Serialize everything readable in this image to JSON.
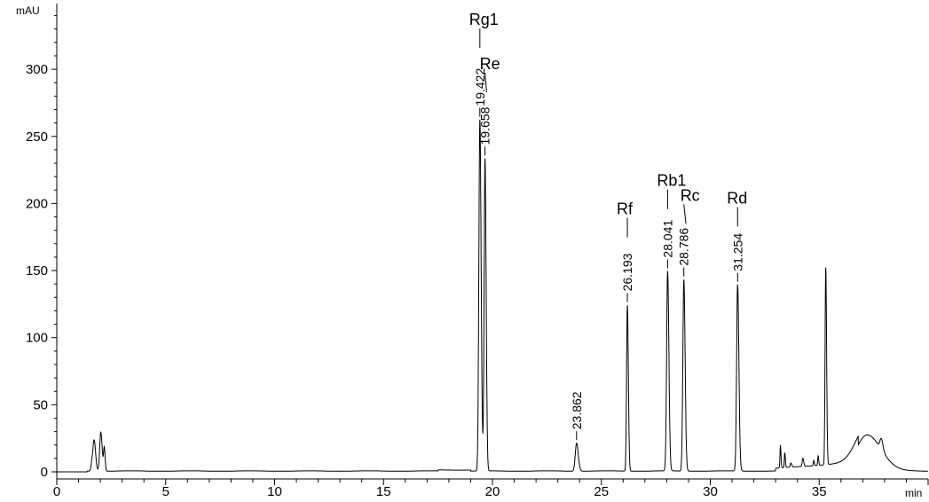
{
  "chart_data": {
    "type": "line",
    "title": "",
    "xlabel": "min",
    "ylabel": "mAU",
    "xlim": [
      0,
      40
    ],
    "ylim": [
      -5,
      348
    ],
    "x_ticks": [
      0,
      5,
      10,
      15,
      20,
      25,
      30,
      35
    ],
    "y_ticks": [
      0,
      50,
      100,
      150,
      200,
      250,
      300
    ],
    "grid": false,
    "line_color": "#000000",
    "peaks": [
      {
        "rt": 1.62,
        "height": 8,
        "width": 0.04
      },
      {
        "rt": 1.72,
        "height": 22,
        "width": 0.05
      },
      {
        "rt": 2.02,
        "height": 29,
        "width": 0.05
      },
      {
        "rt": 2.18,
        "height": 17,
        "width": 0.03
      },
      {
        "rt": 19.422,
        "height": 262,
        "width": 0.045,
        "label": "19.422",
        "name": "Rg1"
      },
      {
        "rt": 19.658,
        "height": 233,
        "width": 0.04,
        "label": "19.658",
        "name": "Re"
      },
      {
        "rt": 23.862,
        "height": 21,
        "width": 0.06,
        "label": "23.862"
      },
      {
        "rt": 26.193,
        "height": 124,
        "width": 0.035,
        "label": "26.193",
        "name": "Rf"
      },
      {
        "rt": 28.041,
        "height": 149,
        "width": 0.045,
        "label": "28.041",
        "name": "Rb1"
      },
      {
        "rt": 28.786,
        "height": 143,
        "width": 0.045,
        "label": "28.786",
        "name": "Rc"
      },
      {
        "rt": 31.254,
        "height": 139,
        "width": 0.045,
        "label": "31.254",
        "name": "Rd"
      },
      {
        "rt": 33.22,
        "height": 17,
        "width": 0.02
      },
      {
        "rt": 33.42,
        "height": 11,
        "width": 0.02
      },
      {
        "rt": 33.7,
        "height": 3,
        "width": 0.03
      },
      {
        "rt": 34.25,
        "height": 6,
        "width": 0.03
      },
      {
        "rt": 34.75,
        "height": 4,
        "width": 0.02
      },
      {
        "rt": 34.95,
        "height": 7,
        "width": 0.02
      },
      {
        "rt": 35.3,
        "height": 147,
        "width": 0.03
      },
      {
        "rt": 37.2,
        "height": 27,
        "width": 0.5
      },
      {
        "rt": 37.85,
        "height": 8,
        "width": 0.06
      }
    ]
  }
}
